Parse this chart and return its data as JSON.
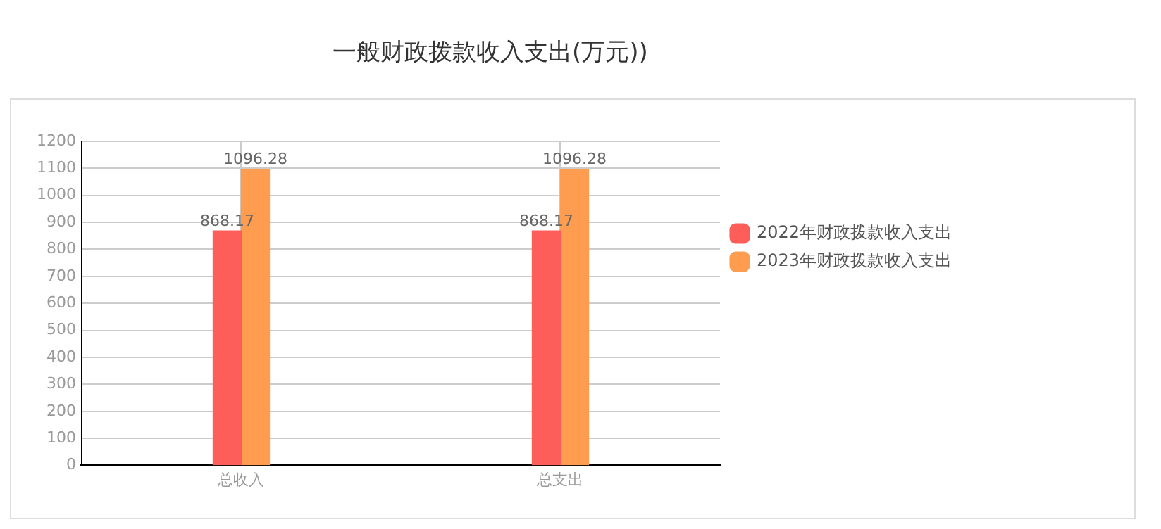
{
  "chart_data": {
    "type": "bar",
    "title": "一般财政拨款收入支出(万元))",
    "categories": [
      "总收入",
      "总支出"
    ],
    "series": [
      {
        "name": "2022年财政拨款收入支出",
        "color": "#fe5e5a",
        "values": [
          868.17,
          868.17
        ]
      },
      {
        "name": "2023年财政拨款收入支出",
        "color": "#fe9d4f",
        "values": [
          1096.28,
          1096.28
        ]
      }
    ],
    "ylim": [
      0,
      1200
    ],
    "yticks": [
      0,
      100,
      200,
      300,
      400,
      500,
      600,
      700,
      800,
      900,
      1000,
      1100,
      1200
    ],
    "grid": true,
    "legend": "right",
    "data_labels": true
  }
}
